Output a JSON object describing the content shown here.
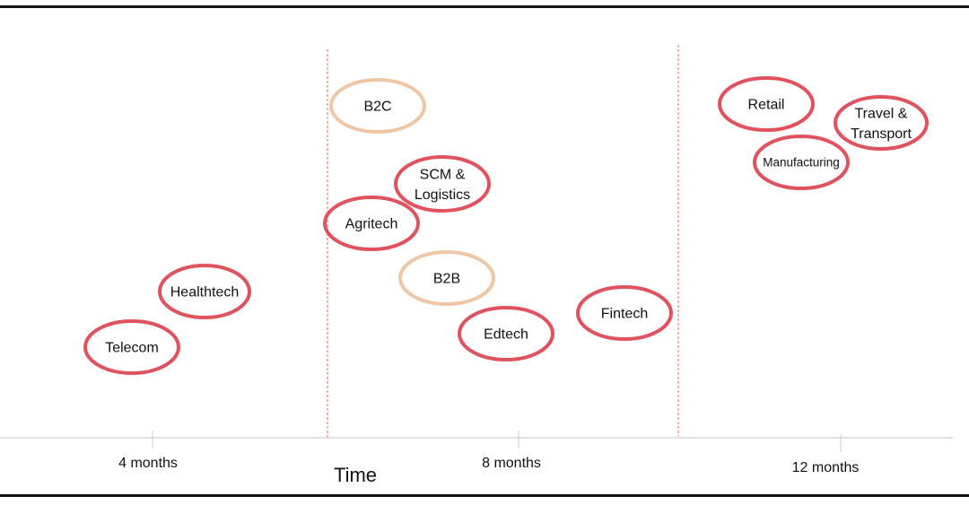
{
  "axis": {
    "title": "Time",
    "ticks": [
      "4 months",
      "8 months",
      "12 months"
    ]
  },
  "colors": {
    "red_oval": "#e0525e",
    "peach_oval": "#efc6a6",
    "divider": "#ec8a7c",
    "axis_line": "#cccccc"
  },
  "items": [
    {
      "label": "B2C",
      "kind": "peach"
    },
    {
      "label": "SCM &\nLogistics",
      "kind": "red"
    },
    {
      "label": "Agritech",
      "kind": "red"
    },
    {
      "label": "B2B",
      "kind": "peach"
    },
    {
      "label": "Edtech",
      "kind": "red"
    },
    {
      "label": "Fintech",
      "kind": "red"
    },
    {
      "label": "Healthtech",
      "kind": "red"
    },
    {
      "label": "Telecom",
      "kind": "red"
    },
    {
      "label": "Retail",
      "kind": "red"
    },
    {
      "label": "Travel &\nTransport",
      "kind": "red"
    },
    {
      "label": "Manufacturing",
      "kind": "red"
    }
  ]
}
